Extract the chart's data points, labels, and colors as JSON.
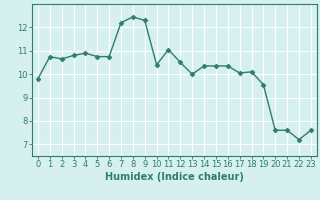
{
  "x": [
    0,
    1,
    2,
    3,
    4,
    5,
    6,
    7,
    8,
    9,
    10,
    11,
    12,
    13,
    14,
    15,
    16,
    17,
    18,
    19,
    20,
    21,
    22,
    23
  ],
  "y": [
    9.8,
    10.75,
    10.65,
    10.8,
    10.9,
    10.75,
    10.75,
    12.2,
    12.45,
    12.3,
    10.4,
    11.05,
    10.5,
    10.0,
    10.35,
    10.35,
    10.35,
    10.05,
    10.1,
    9.55,
    7.6,
    7.6,
    7.2,
    7.6
  ],
  "line_color": "#2e7d6e",
  "marker": "D",
  "marker_size": 2.5,
  "linewidth": 1.0,
  "xlabel": "Humidex (Indice chaleur)",
  "ylim": [
    6.5,
    13.0
  ],
  "xlim": [
    -0.5,
    23.5
  ],
  "yticks": [
    7,
    8,
    9,
    10,
    11,
    12
  ],
  "xticks": [
    0,
    1,
    2,
    3,
    4,
    5,
    6,
    7,
    8,
    9,
    10,
    11,
    12,
    13,
    14,
    15,
    16,
    17,
    18,
    19,
    20,
    21,
    22,
    23
  ],
  "bg_color": "#d6f0ef",
  "grid_color": "#ffffff",
  "tick_color": "#2e7d6e",
  "label_color": "#2e7d6e",
  "xlabel_fontsize": 7.0,
  "tick_fontsize": 6.0
}
